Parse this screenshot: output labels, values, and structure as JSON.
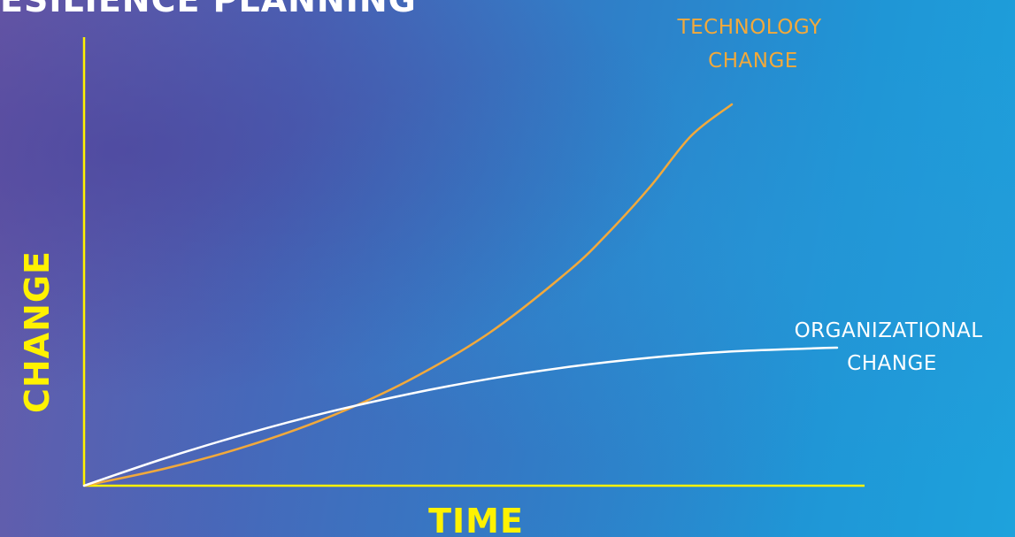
{
  "page": {
    "title": "ESILIENCE PLANNING"
  },
  "chart_data": {
    "type": "line",
    "xlabel": "TIME",
    "ylabel": "CHANGE",
    "xlim": [
      0,
      100
    ],
    "ylim": [
      0,
      100
    ],
    "grid": false,
    "axis_color": "#fff200",
    "series": [
      {
        "key": "technology",
        "label_lines": [
          "TECHNOLOGY",
          "CHANGE"
        ],
        "color": "#f2a93b",
        "x": [
          0,
          10,
          20,
          30,
          40,
          50,
          60,
          65,
          70,
          75,
          80
        ],
        "y": [
          0,
          4.5,
          10.3,
          17.8,
          27.5,
          40.0,
          56.6,
          66.9,
          78.6,
          91.8,
          100
        ]
      },
      {
        "key": "organizational",
        "label_lines": [
          "ORGANIZATIONAL",
          "CHANGE"
        ],
        "color": "#ffffff",
        "x": [
          0,
          10,
          20,
          30,
          40,
          50,
          60,
          70,
          80,
          90,
          93
        ],
        "y": [
          0,
          7.2,
          13.6,
          19.2,
          24.0,
          28.0,
          31.2,
          33.6,
          35.2,
          36.0,
          36.2
        ]
      }
    ]
  }
}
